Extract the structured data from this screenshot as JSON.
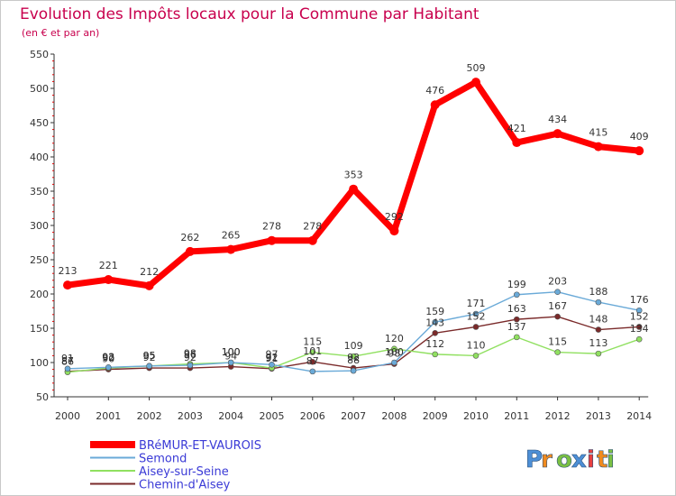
{
  "chart_data": {
    "type": "line",
    "title": "Evolution des Impôts locaux pour la Commune par Habitant",
    "subtitle": "(en € et par an)",
    "xlabel": "",
    "ylabel": "",
    "ylim": [
      50,
      550
    ],
    "yticks": [
      50,
      100,
      150,
      200,
      250,
      300,
      350,
      400,
      450,
      500,
      550
    ],
    "grid": false,
    "categories": [
      "2000",
      "2001",
      "2002",
      "2003",
      "2004",
      "2005",
      "2006",
      "2007",
      "2008",
      "2009",
      "2010",
      "2011",
      "2012",
      "2013",
      "2014"
    ],
    "series": [
      {
        "name": "BRéMUR-ET-VAUROIS",
        "color": "#ff0000",
        "values": [
          213,
          221,
          212,
          262,
          265,
          278,
          278,
          353,
          292,
          476,
          509,
          421,
          434,
          415,
          409
        ]
      },
      {
        "name": "Semond",
        "color": "#6aaad8",
        "values": [
          91,
          93,
          95,
          96,
          100,
          97,
          87,
          88,
          100,
          159,
          171,
          199,
          203,
          188,
          176
        ]
      },
      {
        "name": "Aisey-sur-Seine",
        "color": "#90e060",
        "values": [
          86,
          92,
          95,
          98,
          100,
          92,
          115,
          109,
          120,
          112,
          110,
          137,
          115,
          113,
          134
        ]
      },
      {
        "name": "Chemin-d'Aisey",
        "color": "#7a2a2a",
        "values": [
          87,
          90,
          92,
          92,
          94,
          91,
          101,
          92,
          98,
          143,
          152,
          163,
          167,
          148,
          152
        ]
      }
    ],
    "data_labels": [
      [
        "213",
        "221",
        "212",
        "262",
        "265",
        "278",
        "278",
        "353",
        "292",
        "476",
        "509",
        "421",
        "434",
        "415",
        "409"
      ],
      [
        "91",
        "93",
        "95",
        "96",
        "100",
        "97",
        "87",
        "88",
        "100",
        "159",
        "171",
        "199",
        "203",
        "188",
        "176"
      ],
      [
        "86",
        "92",
        "95",
        "98",
        "100",
        "92",
        "115",
        "109",
        "120",
        "112",
        "110",
        "137",
        "115",
        "113",
        "134"
      ],
      [
        "87",
        "90",
        "92",
        "92",
        "94",
        "91",
        "101",
        "92",
        "98",
        "143",
        "152",
        "163",
        "167",
        "148",
        "152"
      ]
    ],
    "legend_position": "bottom-left"
  },
  "branding": {
    "logo_text": "Proxiti",
    "logo_colors": [
      "#4d8fd6",
      "#f08a1e",
      "#7bc043",
      "#4d8fd6",
      "#e84040",
      "#f08a1e",
      "#7bc043"
    ]
  },
  "colors": {
    "title": "#c8004d",
    "axis": "#333333",
    "axis_marks": "#e00000",
    "legend_text": "#3a3ad6"
  }
}
